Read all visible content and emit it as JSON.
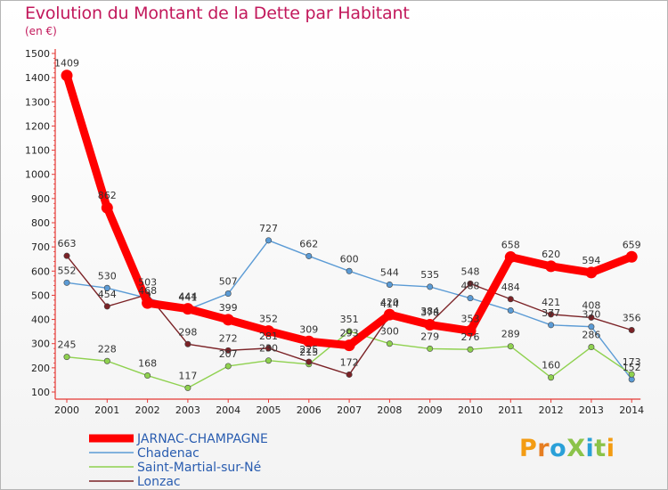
{
  "title": "Evolution du Montant de la Dette par Habitant",
  "subtitle": "(en €)",
  "logo": "ProXiti",
  "chart_data": {
    "type": "line",
    "title": "Evolution du Montant de la Dette par Habitant",
    "subtitle": "(en €)",
    "categories": [
      "2000",
      "2001",
      "2002",
      "2003",
      "2004",
      "2005",
      "2006",
      "2007",
      "2008",
      "2009",
      "2010",
      "2011",
      "2012",
      "2013",
      "2014"
    ],
    "ylim": [
      100,
      1500
    ],
    "yticks": [
      100,
      200,
      300,
      400,
      500,
      600,
      700,
      800,
      900,
      1000,
      1100,
      1200,
      1300,
      1400,
      1500
    ],
    "grid": false,
    "legend_position": "bottom-left",
    "series": [
      {
        "name": "JARNAC-CHAMPAGNE",
        "color": "#ff0000",
        "values": [
          1409,
          862,
          468,
          444,
          399,
          352,
          309,
          293,
          420,
          378,
          353,
          658,
          620,
          594,
          659
        ],
        "labels": [
          "1409",
          "862",
          "468",
          "444",
          "399",
          "352",
          "309",
          "293",
          "420",
          "378",
          "353",
          "658",
          "620",
          "594",
          "659"
        ]
      },
      {
        "name": "Chadenac",
        "color": "#5b9bd5",
        "values": [
          552,
          530,
          488,
          441,
          507,
          727,
          662,
          600,
          544,
          535,
          488,
          437,
          377,
          370,
          152
        ],
        "labels": [
          "552",
          "530",
          "",
          "441",
          "507",
          "727",
          "662",
          "600",
          "544",
          "535",
          "488",
          "",
          "377",
          "370",
          "152"
        ]
      },
      {
        "name": "Saint-Martial-sur-Né",
        "color": "#8fd14f",
        "values": [
          245,
          228,
          168,
          117,
          207,
          230,
          215,
          351,
          300,
          279,
          276,
          289,
          160,
          286,
          173
        ],
        "labels": [
          "245",
          "228",
          "168",
          "117",
          "207",
          "230",
          "215",
          "351",
          "300",
          "279",
          "276",
          "289",
          "160",
          "286",
          "173"
        ]
      },
      {
        "name": "Lonzac",
        "color": "#7b2226",
        "values": [
          663,
          454,
          503,
          298,
          272,
          281,
          225,
          172,
          414,
          384,
          548,
          484,
          421,
          408,
          356
        ],
        "labels": [
          "663",
          "454",
          "503",
          "298",
          "272",
          "281",
          "225",
          "172",
          "414",
          "384",
          "548",
          "484",
          "421",
          "408",
          "356"
        ]
      }
    ]
  }
}
